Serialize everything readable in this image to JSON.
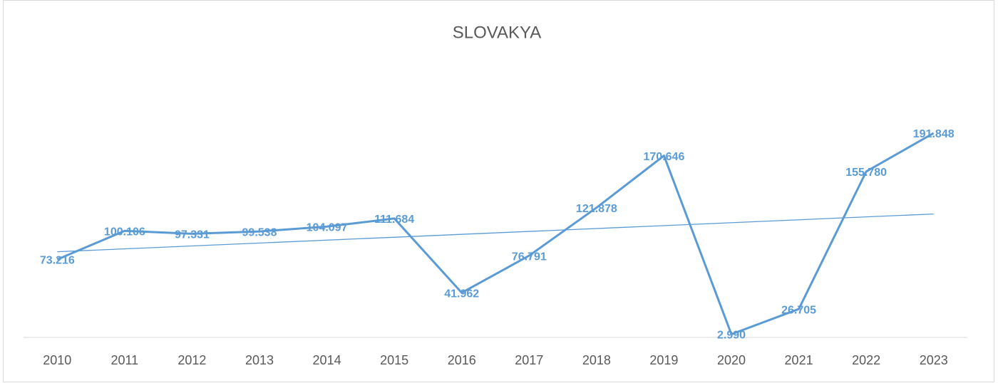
{
  "chart_data": {
    "type": "line",
    "title": "SLOVAKYA",
    "categories": [
      "2010",
      "2011",
      "2012",
      "2013",
      "2014",
      "2015",
      "2016",
      "2017",
      "2018",
      "2019",
      "2020",
      "2021",
      "2022",
      "2023"
    ],
    "values": [
      73216,
      100106,
      97331,
      99538,
      104097,
      111684,
      41962,
      76791,
      121878,
      170646,
      2990,
      26705,
      155780,
      191848
    ],
    "value_labels": [
      "73.216",
      "100.106",
      "97.331",
      "99.538",
      "104.097",
      "111.684",
      "41.962",
      "76.791",
      "121.878",
      "170.646",
      "2.990",
      "26.705",
      "155.780",
      "191.848"
    ],
    "color": "#5b9bd5",
    "ylim": [
      0,
      250000
    ],
    "trendline": "linear"
  }
}
